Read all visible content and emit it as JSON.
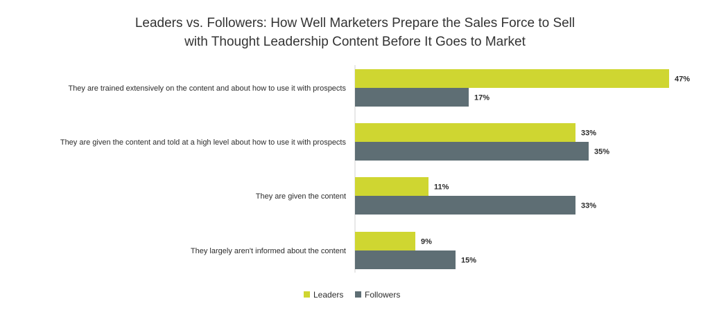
{
  "colors": {
    "leaders": "#cfd631",
    "followers": "#5e6e74",
    "axis": "#d0d0d0",
    "text": "#2b2b2b"
  },
  "chart_data": {
    "type": "bar",
    "orientation": "horizontal",
    "title_lines": [
      "Leaders vs. Followers: How Well Marketers Prepare the Sales Force to Sell",
      "with Thought Leadership Content Before It Goes to Market"
    ],
    "categories": [
      "They are trained extensively on the content and about how to use it with prospects",
      "They are given the content and told at a high level about how to use it with prospects",
      "They are given the content",
      "They largely aren't informed about the content"
    ],
    "series": [
      {
        "name": "Leaders",
        "values": [
          47,
          33,
          11,
          9
        ],
        "labels": [
          "47%",
          "33%",
          "11%",
          "9%"
        ]
      },
      {
        "name": "Followers",
        "values": [
          17,
          35,
          33,
          15
        ],
        "labels": [
          "17%",
          "35%",
          "33%",
          "15%"
        ]
      }
    ],
    "unit": "%",
    "xlim": [
      0,
      47
    ],
    "grid": false,
    "legend_position": "bottom"
  }
}
